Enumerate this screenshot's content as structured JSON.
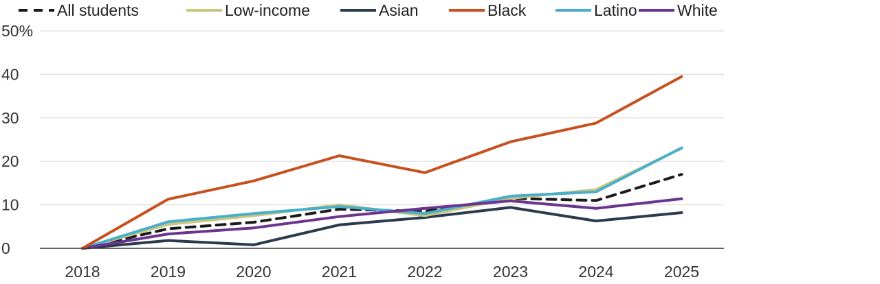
{
  "chart_data": {
    "type": "line",
    "x": [
      "2018",
      "2019",
      "2020",
      "2021",
      "2022",
      "2023",
      "2024",
      "2025"
    ],
    "ylim": [
      0,
      50
    ],
    "yticks": [
      0,
      10,
      20,
      30,
      40,
      50
    ],
    "ytick_labels": [
      "0",
      "10",
      "20",
      "30",
      "40",
      "50%"
    ],
    "grid": true,
    "legend_position": "top",
    "series": [
      {
        "name": "All students",
        "color": "#1a1a1a",
        "dashed": true,
        "values": [
          0,
          4.5,
          6,
          9,
          8.5,
          11.5,
          11,
          17
        ]
      },
      {
        "name": "Low-income",
        "color": "#c9c77e",
        "dashed": false,
        "values": [
          0,
          5.5,
          7.5,
          10,
          7.5,
          11.5,
          13.5,
          23
        ]
      },
      {
        "name": "Asian",
        "color": "#2b3a4d",
        "dashed": false,
        "values": [
          0,
          1.8,
          0.8,
          5.4,
          7.1,
          9.4,
          6.3,
          8.2
        ]
      },
      {
        "name": "Black",
        "color": "#c8501f",
        "dashed": false,
        "values": [
          0,
          11.3,
          15.5,
          21.3,
          17.4,
          24.5,
          28.8,
          39.5
        ]
      },
      {
        "name": "Latino",
        "color": "#4aaecb",
        "dashed": false,
        "values": [
          0,
          6.1,
          8,
          9.6,
          8,
          12,
          13,
          23.1
        ]
      },
      {
        "name": "White",
        "color": "#6b3490",
        "dashed": false,
        "values": [
          0,
          3.3,
          4.7,
          7.3,
          9.2,
          10.9,
          9.2,
          11.4
        ]
      }
    ]
  }
}
